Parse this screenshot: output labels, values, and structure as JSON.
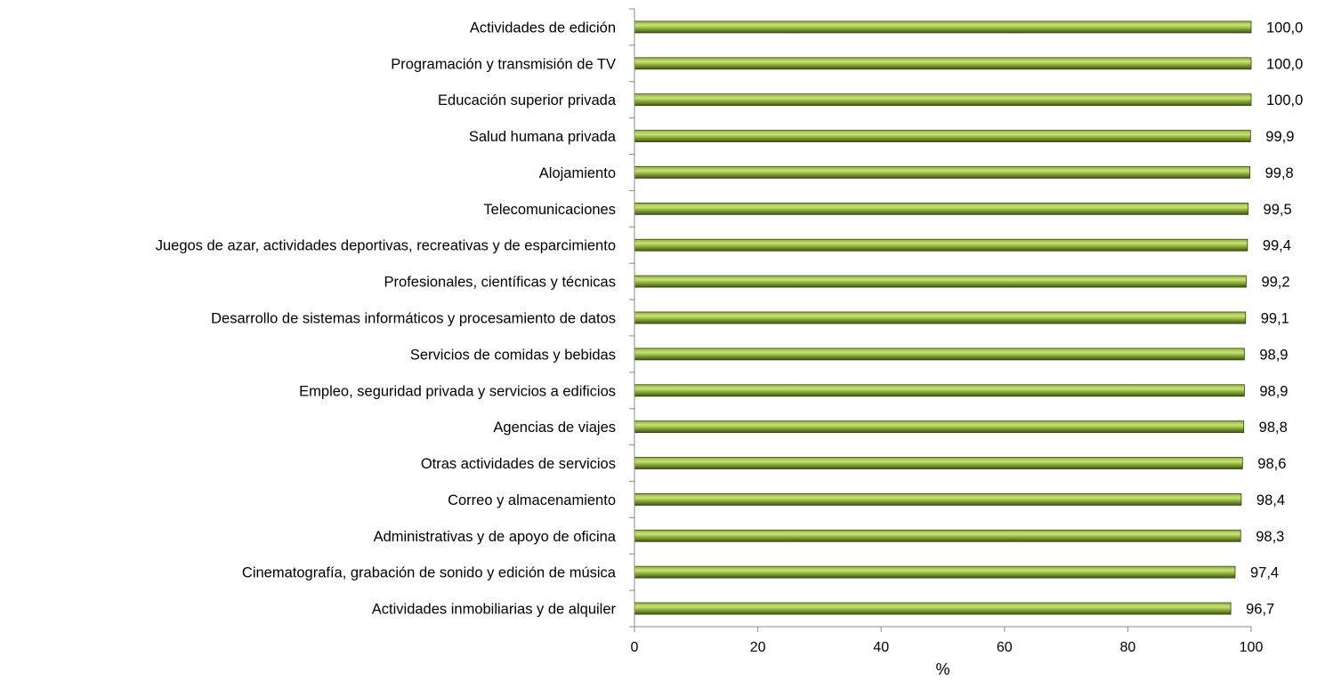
{
  "chart_data": {
    "type": "bar",
    "orientation": "horizontal",
    "categories": [
      "Actividades de edición",
      "Programación y transmisión de TV",
      "Educación superior privada",
      "Salud humana privada",
      "Alojamiento",
      "Telecomunicaciones",
      "Juegos de azar, actividades deportivas, recreativas y de esparcimiento",
      "Profesionales, científicas y técnicas",
      "Desarrollo de sistemas informáticos y procesamiento de datos",
      "Servicios de comidas y bebidas",
      "Empleo, seguridad privada y servicios a edificios",
      "Agencias de viajes",
      "Otras actividades de servicios",
      "Correo y almacenamiento",
      "Administrativas y de apoyo de oficina",
      "Cinematografía, grabación de sonido y edición de música",
      "Actividades inmobiliarias y de alquiler"
    ],
    "values": [
      100.0,
      100.0,
      100.0,
      99.9,
      99.8,
      99.5,
      99.4,
      99.2,
      99.1,
      98.9,
      98.9,
      98.8,
      98.6,
      98.4,
      98.3,
      97.4,
      96.7
    ],
    "value_labels": [
      "100,0",
      "100,0",
      "100,0",
      "99,9",
      "99,8",
      "99,5",
      "99,4",
      "99,2",
      "99,1",
      "98,9",
      "98,9",
      "98,8",
      "98,6",
      "98,4",
      "98,3",
      "97,4",
      "96,7"
    ],
    "xlabel": "%",
    "xlim": [
      0,
      100
    ],
    "xticks": [
      0,
      20,
      40,
      60,
      80,
      100
    ],
    "grid": false,
    "legend": "none",
    "colors": {
      "bar_dark": "#3f5316",
      "bar_mid": "#8fb33a",
      "bar_light": "#c9e27a",
      "bar_edge": "#33420f",
      "axis": "#888888"
    }
  }
}
